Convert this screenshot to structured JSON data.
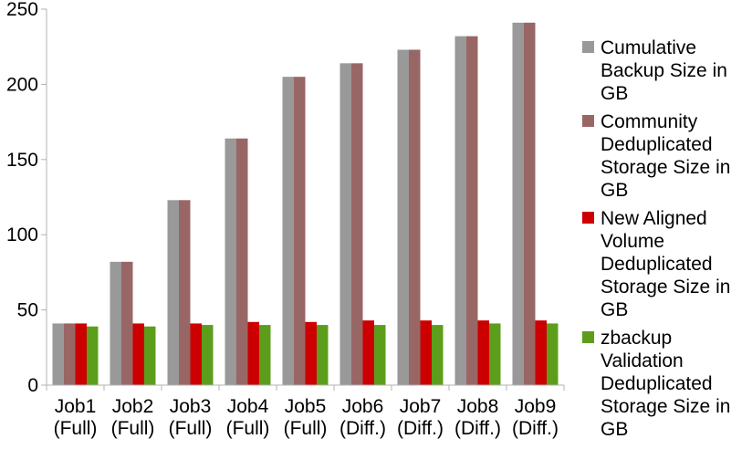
{
  "chart_data": {
    "type": "bar",
    "categories": [
      [
        "Job1",
        "(Full)"
      ],
      [
        "Job2",
        "(Full)"
      ],
      [
        "Job3",
        "(Full)"
      ],
      [
        "Job4",
        "(Full)"
      ],
      [
        "Job5",
        "(Full)"
      ],
      [
        "Job6",
        "(Diff.)"
      ],
      [
        "Job7",
        "(Diff.)"
      ],
      [
        "Job8",
        "(Diff.)"
      ],
      [
        "Job9",
        "(Diff.)"
      ]
    ],
    "series": [
      {
        "name": "Cumulative Backup Size in GB",
        "color": "#999999",
        "values": [
          41,
          82,
          123,
          164,
          205,
          214,
          223,
          232,
          241
        ]
      },
      {
        "name": "Community Deduplicated Storage Size in GB",
        "color": "#996666",
        "values": [
          41,
          82,
          123,
          164,
          205,
          214,
          223,
          232,
          241
        ]
      },
      {
        "name": "New Aligned Volume Deduplicated Storage Size in GB",
        "color": "#cc0000",
        "values": [
          41,
          41,
          41,
          42,
          42,
          43,
          43,
          43,
          43
        ]
      },
      {
        "name": "zbackup Validation Deduplicated Storage Size in GB",
        "color": "#5c9e1c",
        "values": [
          39,
          39,
          40,
          40,
          40,
          40,
          40,
          41,
          41
        ]
      }
    ],
    "yticks": [
      0,
      50,
      100,
      150,
      200,
      250
    ],
    "ylim": [
      0,
      250
    ],
    "title": "",
    "xlabel": "",
    "ylabel": "",
    "grid": false,
    "legend_position": "right"
  }
}
